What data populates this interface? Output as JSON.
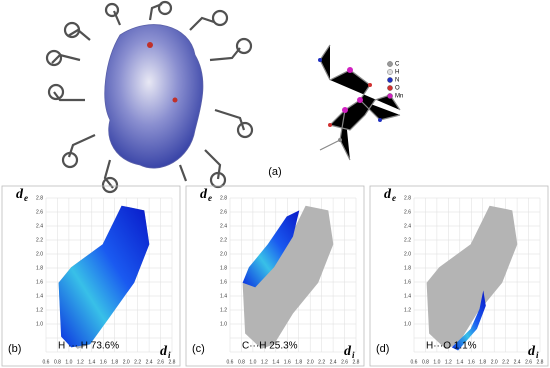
{
  "figure": {
    "panel_a": {
      "label": "(a)",
      "legend": [
        "C",
        "H",
        "N",
        "O",
        "Mn"
      ]
    },
    "fingerprints": [
      {
        "label": "(b)",
        "contact": "H ··· H 73.6%"
      },
      {
        "label": "(c)",
        "contact": "C···H 25.3%"
      },
      {
        "label": "(d)",
        "contact": "H···O 1.1%"
      }
    ],
    "y_axis_label": {
      "main": "d",
      "sub": "e"
    },
    "x_axis_label": {
      "main": "d",
      "sub": "i"
    },
    "ticks": [
      "0.6",
      "0.8",
      "1.0",
      "1.2",
      "1.4",
      "1.6",
      "1.8",
      "2.0",
      "2.2",
      "2.4",
      "2.6",
      "2.8"
    ]
  }
}
